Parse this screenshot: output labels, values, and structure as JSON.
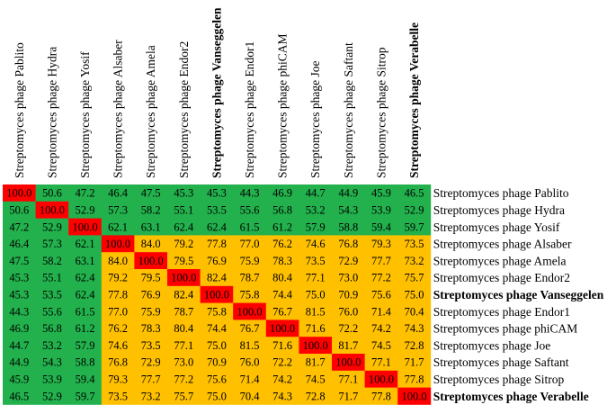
{
  "colors": {
    "diagonal": "#ff0000",
    "cluster_green": "#22b14c",
    "cluster_orange": "#ffc000",
    "background": "#ffffff"
  },
  "chart_data": {
    "type": "heatmap",
    "title": "",
    "labels": [
      "Streptomyces phage Pablito",
      "Streptomyces phage Hydra",
      "Streptomyces phage Yosif",
      "Streptomyces phage Alsaber",
      "Streptomyces phage Amela",
      "Streptomyces phage Endor2",
      "Streptomyces phage Vanseggelen",
      "Streptomyces phage Endor1",
      "Streptomyces phage phiCAM",
      "Streptomyces phage Joe",
      "Streptomyces phage Saftant",
      "Streptomyces phage Sitrop",
      "Streptomyces phage Verabelle"
    ],
    "bold_labels": [
      "Streptomyces phage Vanseggelen",
      "Streptomyces phage Verabelle"
    ],
    "groups": [
      0,
      0,
      0,
      1,
      1,
      1,
      1,
      1,
      1,
      1,
      1,
      1,
      1
    ],
    "values": [
      [
        "100.0",
        "50.6",
        "47.2",
        "46.4",
        "47.5",
        "45.3",
        "45.3",
        "44.3",
        "46.9",
        "44.7",
        "44.9",
        "45.9",
        "46.5"
      ],
      [
        "50.6",
        "100.0",
        "52.9",
        "57.3",
        "58.2",
        "55.1",
        "53.5",
        "55.6",
        "56.8",
        "53.2",
        "54.3",
        "53.9",
        "52.9"
      ],
      [
        "47.2",
        "52.9",
        "100.0",
        "62.1",
        "63.1",
        "62.4",
        "62.4",
        "61.5",
        "61.2",
        "57.9",
        "58.8",
        "59.4",
        "59.7"
      ],
      [
        "46.4",
        "57.3",
        "62.1",
        "100.0",
        "84.0",
        "79.2",
        "77.8",
        "77.0",
        "76.2",
        "74.6",
        "76.8",
        "79.3",
        "73.5"
      ],
      [
        "47.5",
        "58.2",
        "63.1",
        "84.0",
        "100.0",
        "79.5",
        "76.9",
        "75.9",
        "78.3",
        "73.5",
        "72.9",
        "77.7",
        "73.2"
      ],
      [
        "45.3",
        "55.1",
        "62.4",
        "79.2",
        "79.5",
        "100.0",
        "82.4",
        "78.7",
        "80.4",
        "77.1",
        "73.0",
        "77.2",
        "75.7"
      ],
      [
        "45.3",
        "53.5",
        "62.4",
        "77.8",
        "76.9",
        "82.4",
        "100.0",
        "75.8",
        "74.4",
        "75.0",
        "70.9",
        "75.6",
        "75.0"
      ],
      [
        "44.3",
        "55.6",
        "61.5",
        "77.0",
        "75.9",
        "78.7",
        "75.8",
        "100.0",
        "76.7",
        "81.5",
        "76.0",
        "71.4",
        "70.4"
      ],
      [
        "46.9",
        "56.8",
        "61.2",
        "76.2",
        "78.3",
        "80.4",
        "74.4",
        "76.7",
        "100.0",
        "71.6",
        "72.2",
        "74.2",
        "74.3"
      ],
      [
        "44.7",
        "53.2",
        "57.9",
        "74.6",
        "73.5",
        "77.1",
        "75.0",
        "81.5",
        "71.6",
        "100.0",
        "81.7",
        "74.5",
        "72.8"
      ],
      [
        "44.9",
        "54.3",
        "58.8",
        "76.8",
        "72.9",
        "73.0",
        "70.9",
        "76.0",
        "72.2",
        "81.7",
        "100.0",
        "77.1",
        "71.7"
      ],
      [
        "45.9",
        "53.9",
        "59.4",
        "79.3",
        "77.7",
        "77.2",
        "75.6",
        "71.4",
        "74.2",
        "74.5",
        "77.1",
        "100.0",
        "77.8"
      ],
      [
        "46.5",
        "52.9",
        "59.7",
        "73.5",
        "73.2",
        "75.7",
        "75.0",
        "70.4",
        "74.3",
        "72.8",
        "71.7",
        "77.8",
        "100.0"
      ]
    ]
  }
}
